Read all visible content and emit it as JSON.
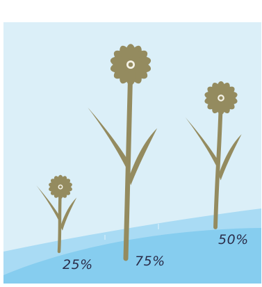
{
  "chart_data": {
    "type": "pictograph",
    "title": "",
    "categories": [
      "25%",
      "75%",
      "50%"
    ],
    "values": [
      25,
      75,
      50
    ],
    "value_unit": "%",
    "legend": "none",
    "grid": false
  },
  "colors": {
    "sky": "#dbeff8",
    "hill_back": "#a9dbf4",
    "hill_front": "#86cdef",
    "flower": "#948b5f",
    "flower_center_ring": "#f4f2e6",
    "label_text": "#2b2d4a"
  }
}
